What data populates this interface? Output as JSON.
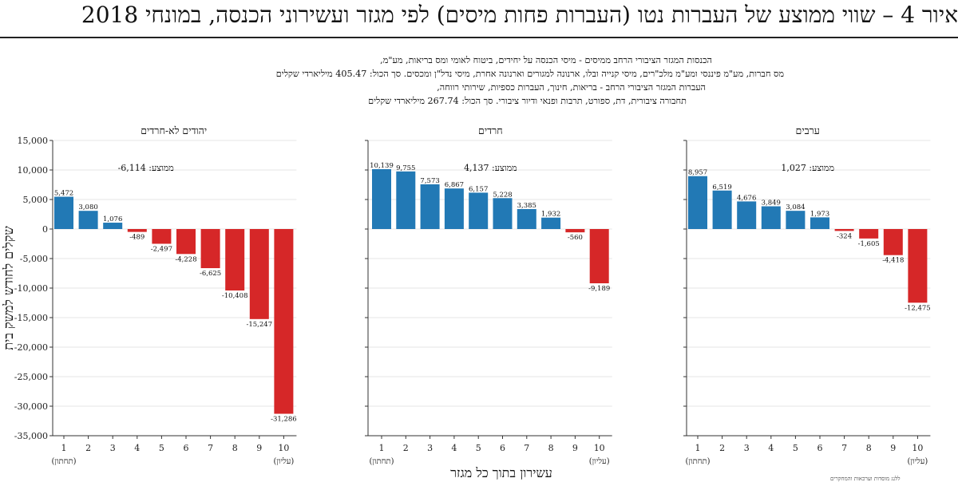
{
  "header": {
    "title": "איור 4 – שווי ממוצע של העברות נטו (העברות פחות מיסים) לפי מגזר ועשירוני הכנסה, במונחי 2018"
  },
  "note": {
    "lines": [
      "הכנסות המגזר הציבורי הרחב ממיסים - מיסי הכנסה על יחידים, ביטוח לאומי ומס בריאות, מע\"מ,",
      "מס חברות, מע\"מ פיננסי ומע\"מ מלכ\"רים, מיסי קנייה ובלו, ארנונה למגורים וארנונה אחרת, מיסי נדל\"ן ומכסים. סך הכול: 405.47 מיליארדי שקלים",
      "העברות המגזר הציבורי הרחב - בריאות, חינוך, העברות כספיות, שירותי רווחה,",
      "תחבורה ציבורית, דת, ספורט, תרבות ופנאי ודיור ציבורי. סך הכול: 267.74 מיליארדי שקלים"
    ]
  },
  "footer": {
    "text": "ללנג מוסדות וערכאות והמחקרים"
  },
  "chart_data": {
    "type": "bar",
    "xlabel": "עשירון בתוך כל מגזר",
    "ylabel": "שקלים לחודש למשק בית",
    "ylim": [
      -35000,
      15000
    ],
    "yticks": [
      "15,000",
      "10,000",
      "5,000",
      "0",
      "-5,000",
      "-10,000",
      "-15,000",
      "-20,000",
      "-25,000",
      "-30,000",
      "-35,000"
    ],
    "categories": [
      "1",
      "2",
      "3",
      "4",
      "5",
      "6",
      "7",
      "8",
      "9",
      "10"
    ],
    "category_notes": {
      "first": "(תחתון)",
      "last": "(עליון)"
    },
    "colors": {
      "positive": "#2279b5",
      "negative": "#d62728"
    },
    "grid": true,
    "panels": [
      {
        "name": "יהודים לא-חרדים",
        "mean_label": "ממוצע: ‎-6,114",
        "values": [
          5472,
          3080,
          1076,
          -489,
          -2497,
          -4228,
          -6625,
          -10408,
          -15247,
          -31286
        ],
        "labels": [
          "5,472",
          "3,080",
          "1,076",
          "-489",
          "-2,497",
          "-4,228",
          "-6,625",
          "-10,408",
          "-15,247",
          "-31,286"
        ]
      },
      {
        "name": "חרדים",
        "mean_label": "ממוצע: 4,137",
        "values": [
          10139,
          9755,
          7573,
          6867,
          6157,
          5228,
          3385,
          1932,
          -560,
          -9189
        ],
        "labels": [
          "10,139",
          "9,755",
          "7,573",
          "6,867",
          "6,157",
          "5,228",
          "3,385",
          "1,932",
          "-560",
          "-9,189"
        ]
      },
      {
        "name": "ערבים",
        "mean_label": "ממוצע: 1,027",
        "values": [
          8957,
          6519,
          4676,
          3849,
          3084,
          1973,
          -324,
          -1605,
          -4418,
          -12475
        ],
        "labels": [
          "8,957",
          "6,519",
          "4,676",
          "3,849",
          "3,084",
          "1,973",
          "-324",
          "-1,605",
          "-4,418",
          "-12,475"
        ]
      }
    ]
  }
}
